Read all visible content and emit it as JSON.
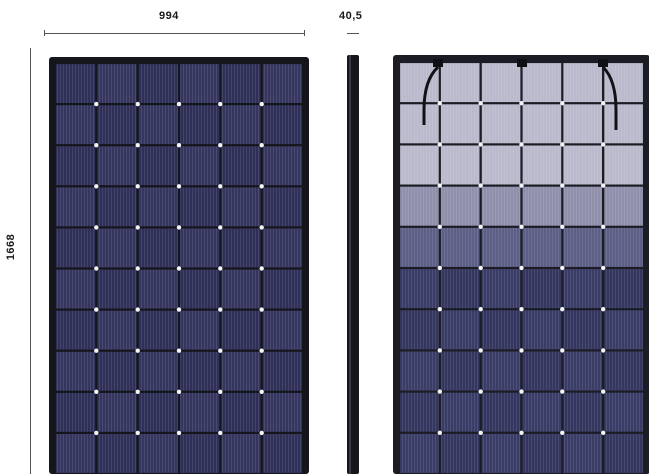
{
  "dimensions": {
    "width_label": "994",
    "depth_label": "40,5",
    "height_label": "1668"
  },
  "panels": {
    "front": {
      "grid_columns": 6,
      "grid_rows": 10
    },
    "back": {
      "grid_columns": 6,
      "grid_rows": 10,
      "junction_boxes": 3
    }
  },
  "colors": {
    "cell_dark": "#2a2b4e",
    "cell_mid": "#3b3d66",
    "frame": "#1a1a22",
    "back_cell_light": "#a8aac0",
    "back_cell_dark": "#353861",
    "busbar": "#9a9ab8"
  }
}
